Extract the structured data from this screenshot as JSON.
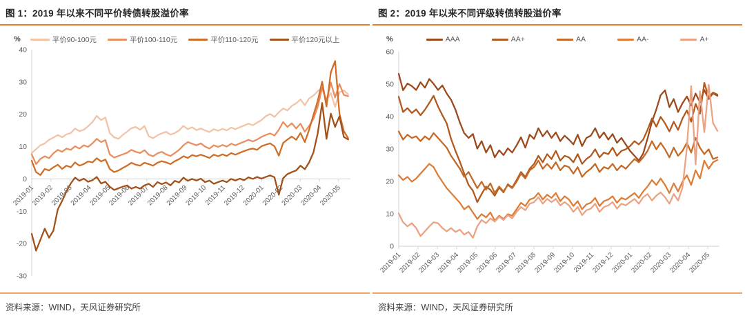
{
  "colors": {
    "header_rule": "#E87E2E",
    "footer_rule": "#EFA661",
    "axis": "#D2D2D2",
    "tick_text": "#595959"
  },
  "panels": [
    {
      "title": "图 1：2019 年以来不同平价转债转股溢价率",
      "unit": "%",
      "source": "资料来源：WIND，天风证券研究所"
    },
    {
      "title": "图 2：2019 年以来不同评级转债转股溢价率",
      "unit": "%",
      "source": "资料来源：WIND，天风证券研究所"
    }
  ],
  "chart_data": [
    {
      "type": "line",
      "title": "图 1：2019 年以来不同平价转债转股溢价率",
      "ylabel": "%",
      "xlabel": "",
      "ylim": [
        -30,
        40
      ],
      "yticks": [
        40,
        30,
        20,
        10,
        0,
        -10,
        -20,
        -30
      ],
      "baseline": "zero",
      "grid": false,
      "legend_position": "top",
      "x_labels": [
        "2019-01",
        "2019-02",
        "2019-03",
        "2019-04",
        "2019-05",
        "2019-06",
        "2019-07",
        "2019-08",
        "2019-09",
        "2019-10",
        "2019-11",
        "2019-12",
        "2020-01",
        "2020-02",
        "2020-03",
        "2020-04",
        "2020-05"
      ],
      "series": [
        {
          "name": "平价90-100元",
          "color": "#F2C3A7",
          "values": [
            8.0,
            9.2,
            10.4,
            11.0,
            12.1,
            12.8,
            13.6,
            12.9,
            13.8,
            14.2,
            15.6,
            14.8,
            15.2,
            16.3,
            17.6,
            19.5,
            18.2,
            19.0,
            14.2,
            12.9,
            12.4,
            13.6,
            14.6,
            15.7,
            16.1,
            15.2,
            16.4,
            13.2,
            12.6,
            13.5,
            14.1,
            14.6,
            13.7,
            14.2,
            15.0,
            16.4,
            15.4,
            16.0,
            15.1,
            15.6,
            15.0,
            14.5,
            15.4,
            14.9,
            15.5,
            15.0,
            15.9,
            15.4,
            16.0,
            16.5,
            17.1,
            16.6,
            17.4,
            18.2,
            19.4,
            20.1,
            19.2,
            20.6,
            21.8,
            21.2,
            22.6,
            23.4,
            24.6,
            22.8,
            24.9,
            25.8,
            27.2,
            28.1,
            24.3,
            26.6,
            22.3,
            26.8,
            27.4,
            26.2
          ]
        },
        {
          "name": "平价100-110元",
          "color": "#E78F60",
          "values": [
            7.6,
            4.6,
            6.2,
            7.0,
            6.4,
            7.9,
            9.0,
            8.4,
            9.4,
            9.0,
            10.1,
            9.4,
            10.4,
            9.9,
            11.0,
            12.4,
            11.4,
            12.0,
            7.6,
            6.6,
            7.1,
            7.6,
            8.1,
            9.0,
            8.4,
            8.0,
            8.9,
            7.5,
            7.0,
            7.9,
            8.4,
            7.6,
            7.1,
            8.0,
            9.0,
            10.4,
            11.4,
            10.9,
            10.4,
            11.0,
            10.0,
            9.4,
            10.4,
            9.9,
            10.5,
            10.0,
            10.9,
            10.4,
            11.0,
            11.5,
            12.1,
            11.6,
            12.2,
            13.0,
            13.6,
            14.1,
            13.4,
            15.2,
            17.6,
            16.1,
            17.2,
            15.6,
            17.1,
            14.6,
            16.4,
            18.6,
            22.4,
            28.2,
            24.1,
            29.8,
            25.2,
            29.4,
            26.0,
            25.6
          ]
        },
        {
          "name": "平价110-120元",
          "color": "#D06E28",
          "values": [
            5.6,
            2.1,
            1.2,
            3.1,
            2.6,
            3.6,
            4.4,
            3.1,
            4.1,
            3.6,
            5.1,
            4.1,
            4.6,
            5.4,
            5.1,
            6.4,
            5.4,
            6.0,
            3.1,
            2.1,
            2.6,
            3.4,
            4.1,
            5.0,
            4.4,
            4.1,
            5.0,
            4.6,
            4.1,
            5.0,
            5.5,
            5.1,
            4.6,
            5.5,
            6.1,
            7.0,
            6.5,
            7.4,
            7.0,
            7.5,
            7.0,
            6.5,
            7.5,
            7.0,
            7.6,
            7.1,
            8.0,
            7.5,
            8.1,
            8.6,
            9.1,
            9.4,
            9.0,
            10.1,
            10.6,
            11.0,
            10.1,
            7.2,
            11.1,
            12.2,
            13.1,
            12.1,
            14.2,
            11.4,
            15.2,
            19.8,
            24.2,
            30.1,
            22.4,
            33.0,
            36.5,
            20.2,
            14.8,
            12.6
          ]
        },
        {
          "name": "平价120元以上",
          "color": "#A1511B",
          "values": [
            -17.0,
            -22.2,
            -18.8,
            -15.4,
            -18.2,
            -16.0,
            -9.5,
            -6.8,
            -3.9,
            -1.4,
            0.4,
            -0.6,
            0.1,
            -0.9,
            -0.4,
            0.6,
            -1.4,
            -0.9,
            -2.4,
            -3.4,
            -2.9,
            -2.4,
            -2.0,
            -3.0,
            -2.5,
            -3.0,
            -2.0,
            -1.5,
            -2.5,
            -1.0,
            -1.6,
            -1.1,
            -2.0,
            -0.6,
            -1.1,
            0.4,
            -0.6,
            0.0,
            -0.5,
            0.1,
            -1.0,
            -0.5,
            -1.5,
            -1.0,
            -0.5,
            -1.0,
            0.0,
            -0.5,
            0.1,
            -0.4,
            0.5,
            0.0,
            0.6,
            0.1,
            0.6,
            1.1,
            0.5,
            -4.9,
            0.2,
            1.5,
            2.1,
            2.6,
            4.1,
            3.0,
            5.1,
            8.2,
            14.2,
            23.5,
            12.4,
            20.2,
            16.1,
            19.4,
            13.0,
            12.2
          ]
        }
      ]
    },
    {
      "type": "line",
      "title": "图 2：2019 年以来不同评级转债转股溢价率",
      "ylabel": "%",
      "xlabel": "",
      "ylim": [
        0,
        60
      ],
      "yticks": [
        60,
        50,
        40,
        30,
        20,
        10,
        0
      ],
      "baseline": "bottom",
      "grid": false,
      "legend_position": "top",
      "x_labels": [
        "2019-01",
        "2019-02",
        "2019-03",
        "2019-04",
        "2019-05",
        "2019-06",
        "2019-07",
        "2019-08",
        "2019-09",
        "2019-10",
        "2019-11",
        "2019-12",
        "2020-01",
        "2020-02",
        "2020-03",
        "2020-04",
        "2020-05"
      ],
      "series": [
        {
          "name": "AAA",
          "color": "#9C4A1D",
          "values": [
            53.2,
            48.1,
            50.2,
            49.4,
            48.2,
            50.6,
            48.9,
            51.6,
            50.1,
            48.2,
            49.6,
            47.1,
            45.2,
            42.1,
            38.2,
            34.9,
            33.4,
            34.6,
            30.1,
            32.4,
            28.9,
            31.2,
            27.4,
            29.6,
            28.1,
            30.2,
            28.9,
            31.1,
            33.6,
            30.4,
            34.4,
            33.1,
            36.4,
            33.9,
            35.6,
            33.4,
            35.1,
            32.4,
            34.1,
            32.9,
            31.4,
            34.4,
            30.9,
            33.4,
            34.1,
            36.4,
            33.4,
            35.1,
            32.9,
            34.6,
            31.9,
            33.4,
            31.4,
            29.4,
            27.9,
            26.4,
            28.6,
            33.2,
            38.4,
            42.2,
            46.6,
            48.1,
            42.9,
            45.4,
            41.4,
            44.1,
            46.2,
            43.4,
            47.1,
            44.4,
            48.2,
            45.4,
            47.2,
            46.4
          ]
        },
        {
          "name": "AA+",
          "color": "#B05A1F",
          "values": [
            46.1,
            41.4,
            42.6,
            41.1,
            42.2,
            40.4,
            42.1,
            44.2,
            46.4,
            43.1,
            40.4,
            37.9,
            33.1,
            29.4,
            26.1,
            22.4,
            18.9,
            17.1,
            13.6,
            16.1,
            18.4,
            17.4,
            15.6,
            18.1,
            16.6,
            19.1,
            18.1,
            20.4,
            22.9,
            21.4,
            23.9,
            25.4,
            27.9,
            25.9,
            28.4,
            26.9,
            29.4,
            26.4,
            27.9,
            27.4,
            25.9,
            28.4,
            25.4,
            26.9,
            27.9,
            29.9,
            27.4,
            28.9,
            28.4,
            30.4,
            27.9,
            29.4,
            29.9,
            30.9,
            32.4,
            31.4,
            32.9,
            35.9,
            39.4,
            36.9,
            39.9,
            37.9,
            35.4,
            38.4,
            35.9,
            39.4,
            41.9,
            38.4,
            43.9,
            40.9,
            50.4,
            45.9,
            47.4,
            46.8
          ]
        },
        {
          "name": "AA",
          "color": "#C46A28",
          "values": [
            35.4,
            32.9,
            34.4,
            33.4,
            33.9,
            32.4,
            33.9,
            32.9,
            34.9,
            33.4,
            31.9,
            30.4,
            27.9,
            25.9,
            23.9,
            21.4,
            22.9,
            20.4,
            17.9,
            19.9,
            17.4,
            19.4,
            16.4,
            18.4,
            16.9,
            18.9,
            17.9,
            19.9,
            22.4,
            20.9,
            23.4,
            24.4,
            26.4,
            23.9,
            25.4,
            23.9,
            25.9,
            23.4,
            24.9,
            24.4,
            22.4,
            24.4,
            21.4,
            22.9,
            23.9,
            25.4,
            22.9,
            24.4,
            23.9,
            25.4,
            23.4,
            24.9,
            23.9,
            25.4,
            26.9,
            25.9,
            27.4,
            29.4,
            32.4,
            29.9,
            31.9,
            29.9,
            27.4,
            30.4,
            27.9,
            29.4,
            31.9,
            28.9,
            33.4,
            30.4,
            28.4,
            29.9,
            26.9,
            27.4
          ]
        },
        {
          "name": "AA-",
          "color": "#DD7E38",
          "values": [
            21.9,
            20.4,
            21.4,
            19.9,
            20.9,
            22.4,
            23.9,
            25.4,
            24.4,
            21.9,
            19.9,
            17.9,
            16.4,
            14.9,
            13.4,
            11.4,
            12.4,
            10.4,
            8.4,
            9.9,
            8.9,
            10.4,
            7.9,
            9.4,
            8.4,
            9.9,
            9.4,
            11.4,
            13.4,
            12.4,
            14.4,
            14.9,
            16.4,
            14.4,
            15.9,
            14.9,
            16.4,
            13.9,
            15.4,
            14.4,
            12.4,
            13.9,
            11.4,
            12.9,
            13.4,
            14.9,
            12.4,
            13.9,
            14.4,
            15.4,
            13.4,
            14.9,
            14.4,
            15.4,
            16.4,
            14.9,
            16.9,
            18.4,
            20.4,
            18.9,
            20.9,
            18.9,
            16.4,
            19.4,
            16.9,
            19.9,
            21.9,
            18.9,
            23.4,
            20.9,
            26.4,
            23.9,
            25.9,
            26.6
          ]
        },
        {
          "name": "A+",
          "color": "#EAA384",
          "values": [
            10.1,
            7.4,
            6.1,
            7.1,
            5.6,
            3.1,
            4.6,
            6.1,
            7.4,
            7.1,
            5.6,
            4.6,
            5.6,
            4.4,
            5.1,
            3.6,
            4.4,
            2.6,
            6.1,
            8.1,
            7.1,
            8.6,
            7.6,
            9.1,
            8.1,
            9.6,
            8.6,
            10.6,
            12.1,
            11.1,
            13.1,
            13.6,
            15.1,
            13.1,
            14.6,
            13.6,
            14.6,
            12.6,
            13.6,
            12.6,
            10.6,
            12.1,
            9.6,
            11.1,
            11.6,
            13.1,
            10.6,
            12.1,
            12.6,
            13.6,
            11.6,
            13.1,
            12.6,
            13.6,
            14.6,
            13.1,
            15.1,
            16.1,
            14.1,
            15.6,
            16.6,
            15.1,
            13.1,
            16.1,
            14.1,
            18.1,
            30.2,
            49.4,
            25.2,
            47.8,
            35.2,
            49.8,
            38.0,
            35.6
          ]
        }
      ]
    }
  ]
}
